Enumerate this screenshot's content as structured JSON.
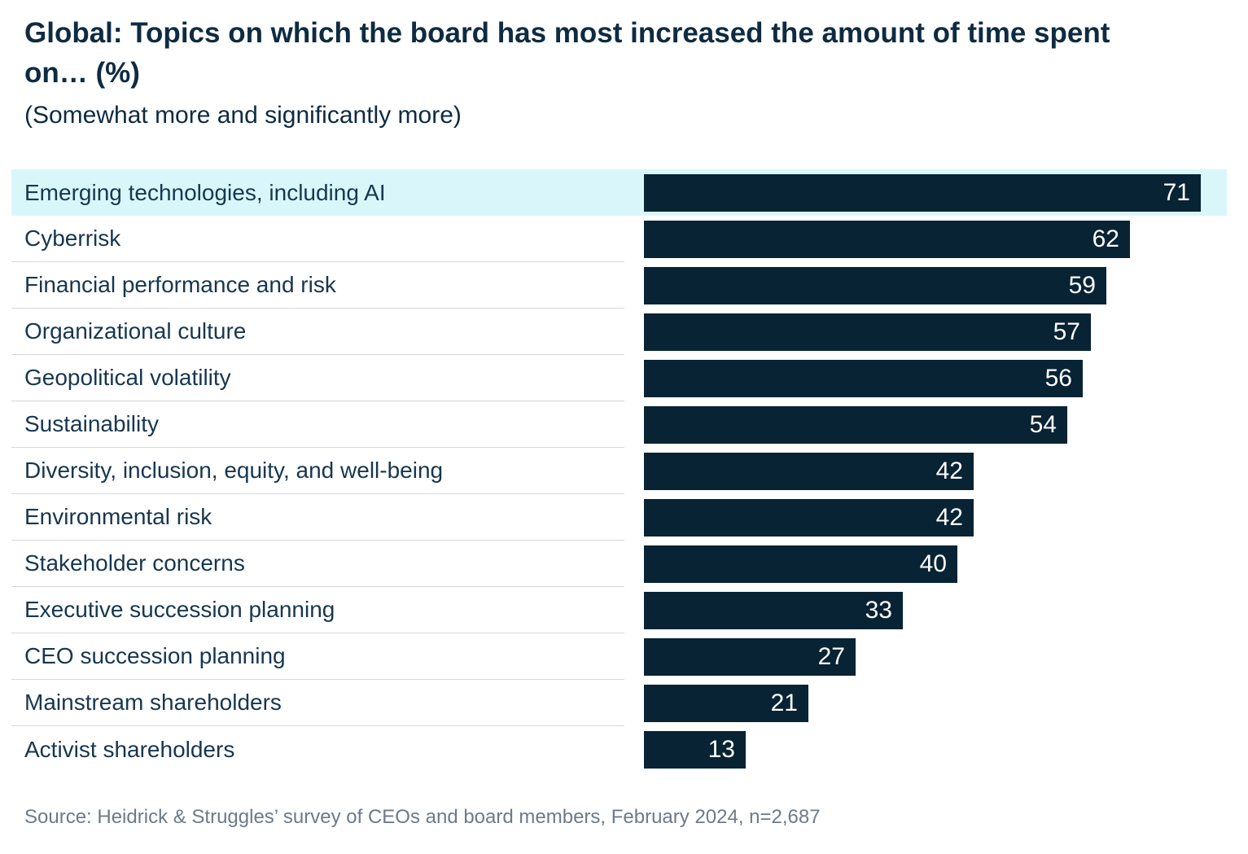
{
  "header": {
    "title": "Global: Topics on which the board has most increased the amount of time spent on… (%)",
    "subtitle": "(Somewhat more and significantly more)"
  },
  "chart_data": {
    "type": "bar",
    "orientation": "horizontal",
    "title": "Global: Topics on which the board has most increased the amount of time spent on… (%)",
    "subtitle": "(Somewhat more and significantly more)",
    "categories": [
      "Emerging technologies, including AI",
      "Cyberrisk",
      "Financial performance and risk",
      "Organizational culture",
      "Geopolitical volatility",
      "Sustainability",
      "Diversity, inclusion, equity, and well-being",
      "Environmental risk",
      "Stakeholder concerns",
      "Executive succession planning",
      "CEO succession planning",
      "Mainstream shareholders",
      "Activist shareholders"
    ],
    "values": [
      71,
      62,
      59,
      57,
      56,
      54,
      42,
      42,
      40,
      33,
      27,
      21,
      13
    ],
    "xlim": [
      0,
      71
    ],
    "value_labels_shown": true,
    "highlighted_category": "Emerging technologies, including AI",
    "grid": false,
    "legend": false
  },
  "footer": {
    "source": "Source: Heidrick & Struggles’ survey of CEOs and board members, February 2024, n=2,687"
  },
  "colors": {
    "bar": "#082334",
    "highlight": "#D9F7FA",
    "title_text": "#0E2B41",
    "label_text": "#173750",
    "divider": "#D8D8D8",
    "source_text": "#6E7A89",
    "value_text": "#FFFFFF"
  }
}
